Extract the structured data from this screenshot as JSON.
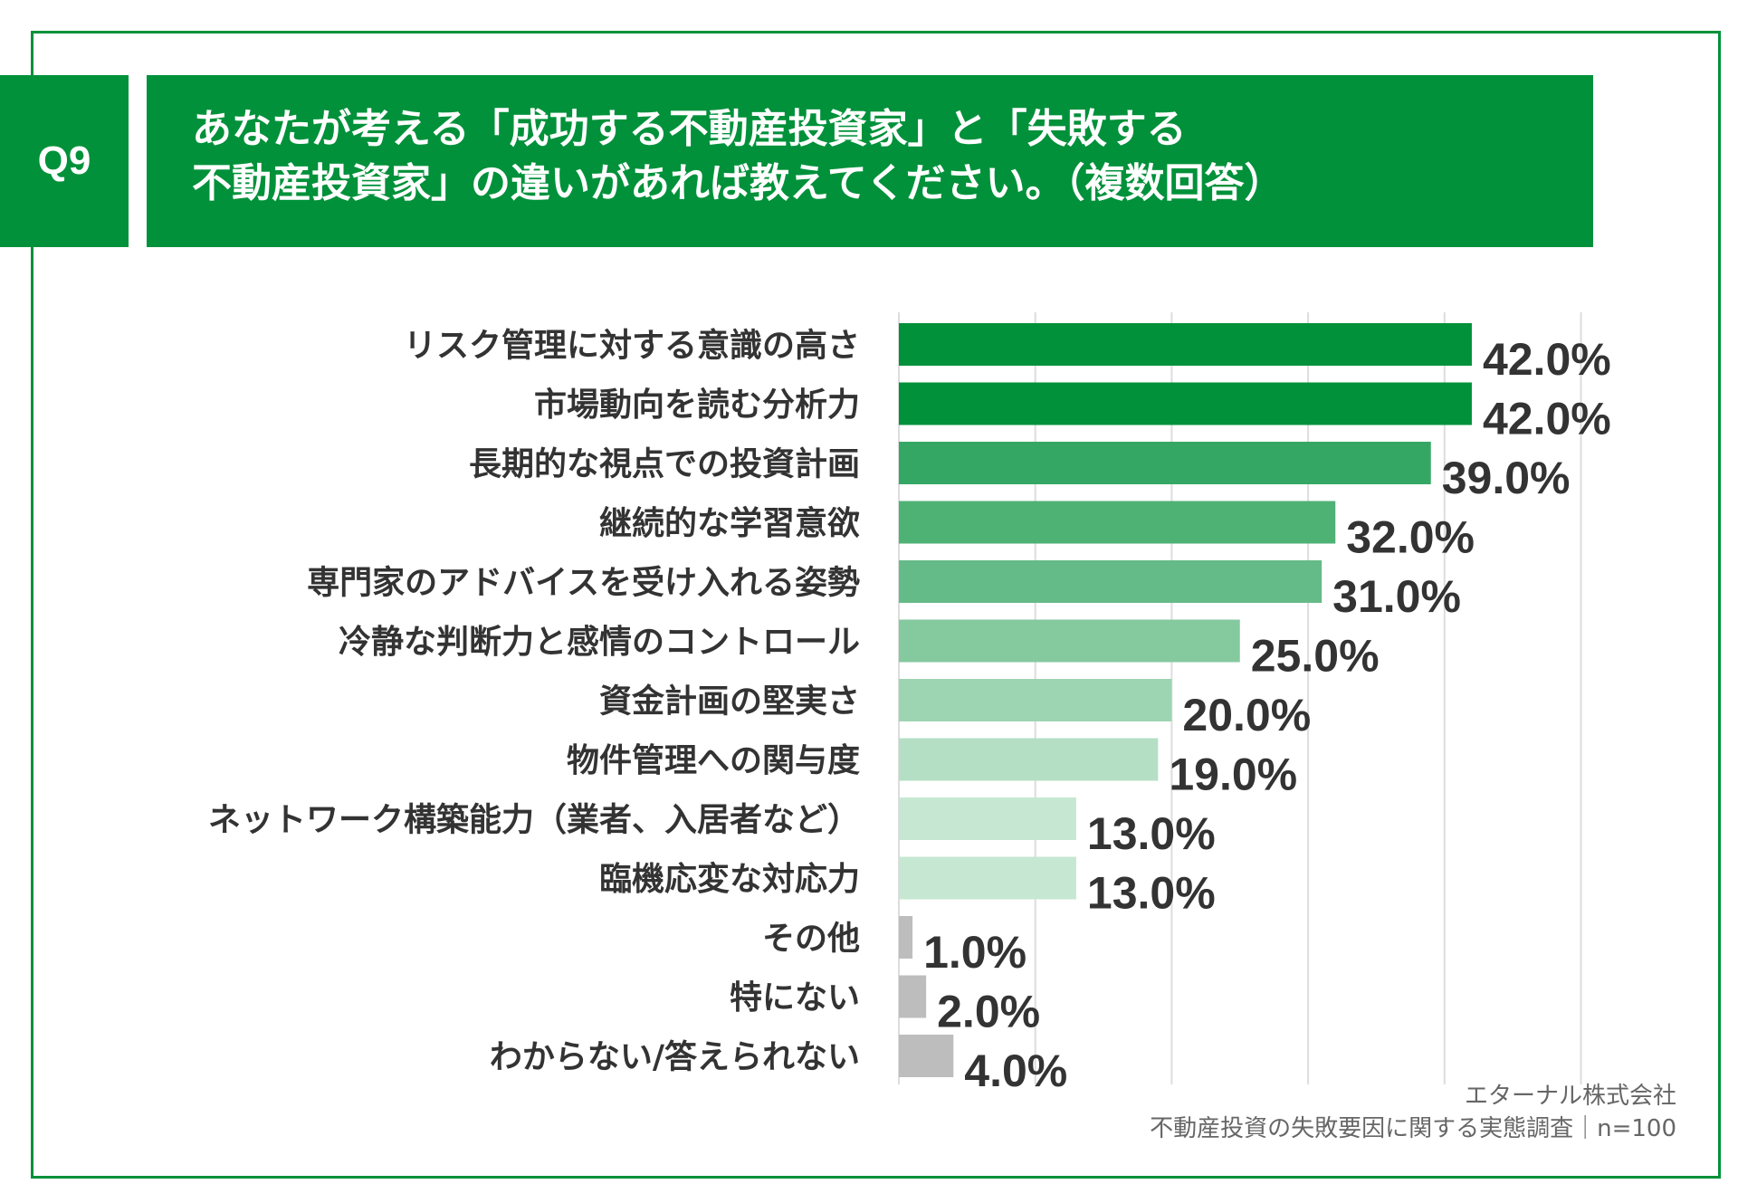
{
  "header": {
    "question_badge": "Q9",
    "title_line1": "あなたが考える「成功する不動産投資家」と「失敗する",
    "title_line2": "不動産投資家」の違いがあれば教えてください。（複数回答）"
  },
  "footer": {
    "company": "エターナル株式会社",
    "survey": "不動産投資の失敗要因に関する実態調査｜n=100"
  },
  "colors": {
    "brand_green": "#00913a",
    "bar_colors": [
      "#00913a",
      "#00913a",
      "#35a765",
      "#4fb275",
      "#65bb88",
      "#85c99f",
      "#9dd4b2",
      "#b4dfc4",
      "#c6e7d2",
      "#c6e7d2",
      "#bdbdbd",
      "#bdbdbd",
      "#bdbdbd"
    ]
  },
  "chart_data": {
    "type": "bar",
    "orientation": "horizontal",
    "title": "",
    "xlabel": "",
    "ylabel": "",
    "xlim": [
      0,
      50
    ],
    "grid": true,
    "categories": [
      "リスク管理に対する意識の高さ",
      "市場動向を読む分析力",
      "長期的な視点での投資計画",
      "継続的な学習意欲",
      "専門家のアドバイスを受け入れる姿勢",
      "冷静な判断力と感情のコントロール",
      "資金計画の堅実さ",
      "物件管理への関与度",
      "ネットワーク構築能力（業者、入居者など）",
      "臨機応変な対応力",
      "その他",
      "特にない",
      "わからない/答えられない"
    ],
    "values": [
      42.0,
      42.0,
      39.0,
      32.0,
      31.0,
      25.0,
      20.0,
      19.0,
      13.0,
      13.0,
      1.0,
      2.0,
      4.0
    ],
    "value_labels": [
      "42.0%",
      "42.0%",
      "39.0%",
      "32.0%",
      "31.0%",
      "25.0%",
      "20.0%",
      "19.0%",
      "13.0%",
      "13.0%",
      "1.0%",
      "2.0%",
      "4.0%"
    ]
  }
}
